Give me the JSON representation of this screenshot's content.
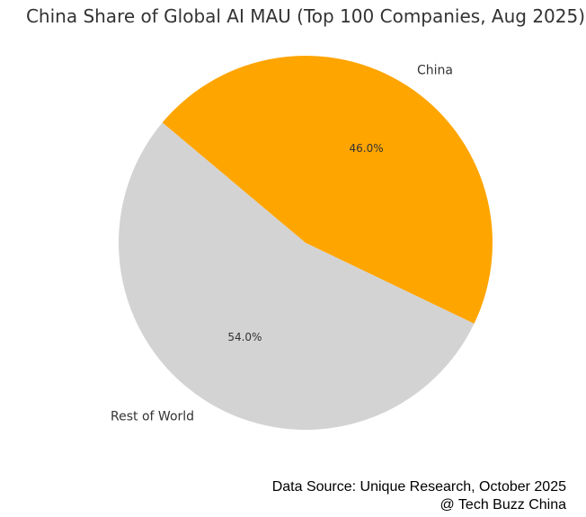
{
  "chart_data": {
    "type": "pie",
    "title": "China Share of Global AI MAU (Top 100 Companies, Aug 2025)",
    "slices": [
      {
        "label": "Rest of World",
        "value": 54.0,
        "pct_label": "54.0%",
        "color": "#d3d3d3"
      },
      {
        "label": "China",
        "value": 46.0,
        "pct_label": "46.0%",
        "color": "#ffa500"
      }
    ],
    "start_angle_deg": 140,
    "direction": "counterclockwise"
  },
  "footer": {
    "source": "Data Source: Unique Research, October 2025",
    "credit": "@ Tech Buzz China"
  }
}
